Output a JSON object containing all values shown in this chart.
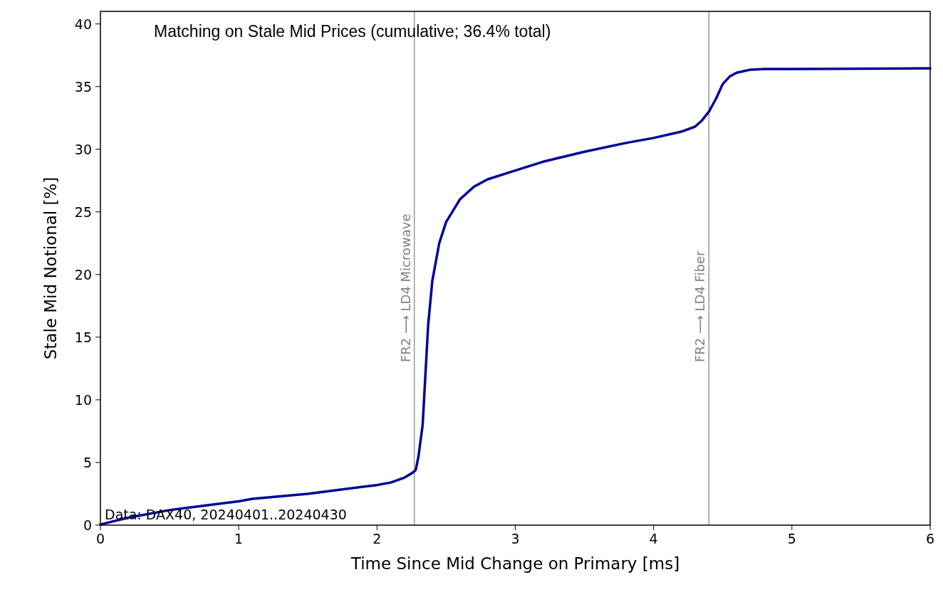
{
  "chart_data": {
    "type": "line",
    "title": "Matching on Stale Mid Prices (cumulative; 36.4% total)",
    "xlabel": "Time Since Mid Change on Primary [ms]",
    "ylabel": "Stale Mid Notional [%]",
    "annotations": [
      "Data: DAX40, 20240401..20240430"
    ],
    "xlim": [
      0,
      6
    ],
    "xticks": [
      0,
      1,
      2,
      3,
      4,
      5,
      6
    ],
    "ylim": [
      0,
      41
    ],
    "yticks": [
      0,
      5,
      10,
      15,
      20,
      25,
      30,
      35,
      40
    ],
    "series": [
      {
        "color": "#00009a",
        "x": [
          0,
          0.2,
          0.5,
          1,
          1.1,
          1.5,
          2,
          2.1,
          2.2,
          2.26,
          2.28,
          2.3,
          2.33,
          2.35,
          2.37,
          2.4,
          2.45,
          2.5,
          2.6,
          2.7,
          2.8,
          3,
          3.2,
          3.5,
          3.8,
          4,
          4.2,
          4.3,
          4.35,
          4.4,
          4.45,
          4.5,
          4.55,
          4.6,
          4.7,
          4.8,
          5,
          6
        ],
        "values": [
          0.05,
          0.6,
          1.2,
          1.9,
          2.1,
          2.5,
          3.2,
          3.4,
          3.8,
          4.2,
          4.4,
          5.5,
          8,
          12,
          16,
          19.5,
          22.5,
          24.2,
          26,
          27,
          27.6,
          28.3,
          29,
          29.8,
          30.5,
          30.9,
          31.4,
          31.8,
          32.3,
          33,
          34,
          35.2,
          35.8,
          36.1,
          36.35,
          36.4,
          36.4,
          36.45
        ]
      }
    ],
    "ref_lines": [
      {
        "axis": "x",
        "value": 2.27,
        "label": "FR2 ⟶ LD4 Microwave",
        "color": "#808080"
      },
      {
        "axis": "x",
        "value": 4.4,
        "label": "FR2 ⟶ LD4 Fiber",
        "color": "#808080"
      }
    ],
    "grid": false,
    "marker": "none",
    "line_style": "solid"
  }
}
